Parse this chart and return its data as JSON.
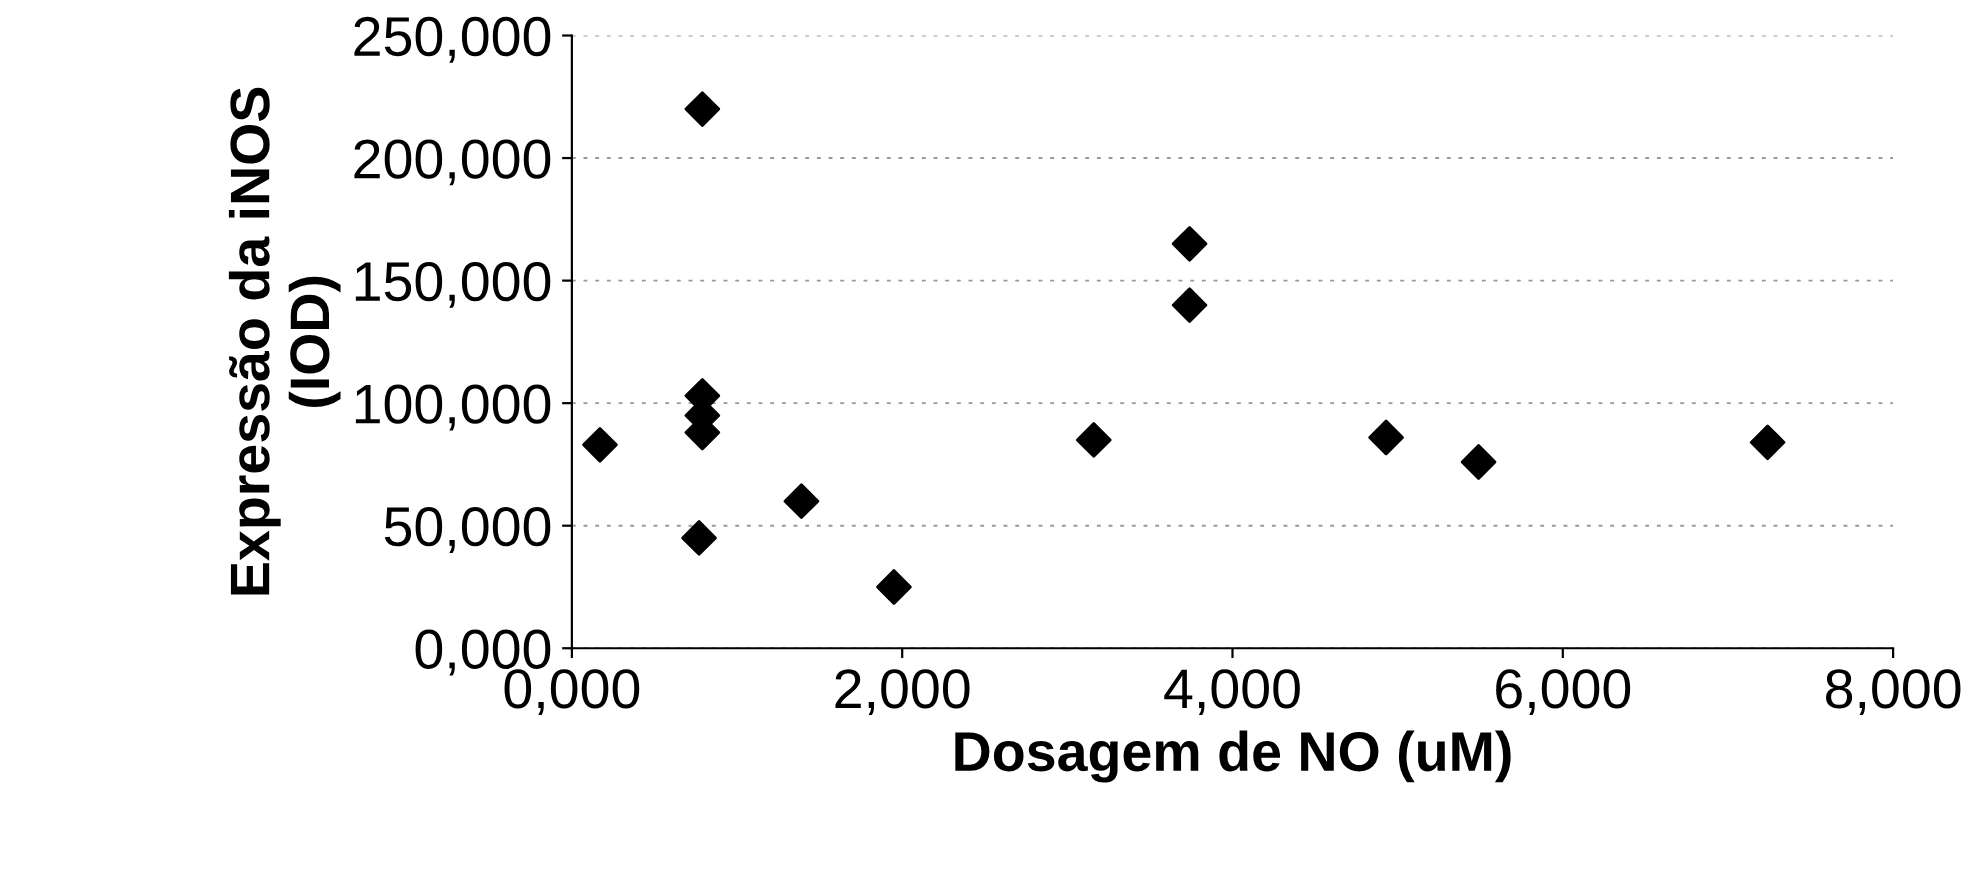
{
  "chart_data": {
    "type": "scatter",
    "xlabel": "Dosagem de NO (uM)",
    "ylabel": "Expressão da iNOS\n(IOD)",
    "x": [
      0.17,
      0.79,
      0.79,
      0.79,
      0.79,
      0.77,
      1.39,
      1.95,
      3.16,
      3.74,
      3.74,
      4.93,
      5.49,
      7.24
    ],
    "series": [
      {
        "color": "#000000",
        "values": [
          83,
          220,
          103,
          95,
          88,
          45,
          60,
          25,
          85,
          165,
          140,
          86,
          76,
          84
        ]
      }
    ],
    "marker": "diamond",
    "grid": "y",
    "xlim": [
      0,
      8
    ],
    "xticks": [
      {
        "value": 0,
        "label": "0,000"
      },
      {
        "value": 2,
        "label": "2,000"
      },
      {
        "value": 4,
        "label": "4,000"
      },
      {
        "value": 6,
        "label": "6,000"
      },
      {
        "value": 8,
        "label": "8,000"
      }
    ],
    "ylim": [
      0,
      250
    ],
    "yticks": [
      {
        "value": 0,
        "label": "0,000"
      },
      {
        "value": 50,
        "label": "50,000"
      },
      {
        "value": 100,
        "label": "100,000"
      },
      {
        "value": 150,
        "label": "150,000"
      },
      {
        "value": 200,
        "label": "200,000"
      },
      {
        "value": 250,
        "label": "250,000"
      }
    ]
  }
}
